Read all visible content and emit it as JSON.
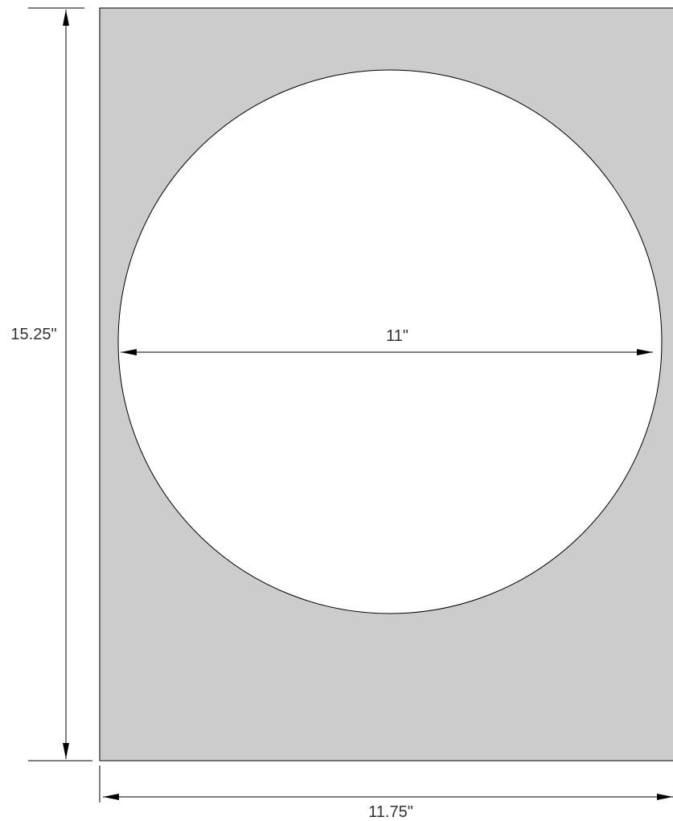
{
  "dimensions": {
    "height": "15.25\"",
    "width": "11.75\"",
    "circle_diameter": "11\""
  }
}
